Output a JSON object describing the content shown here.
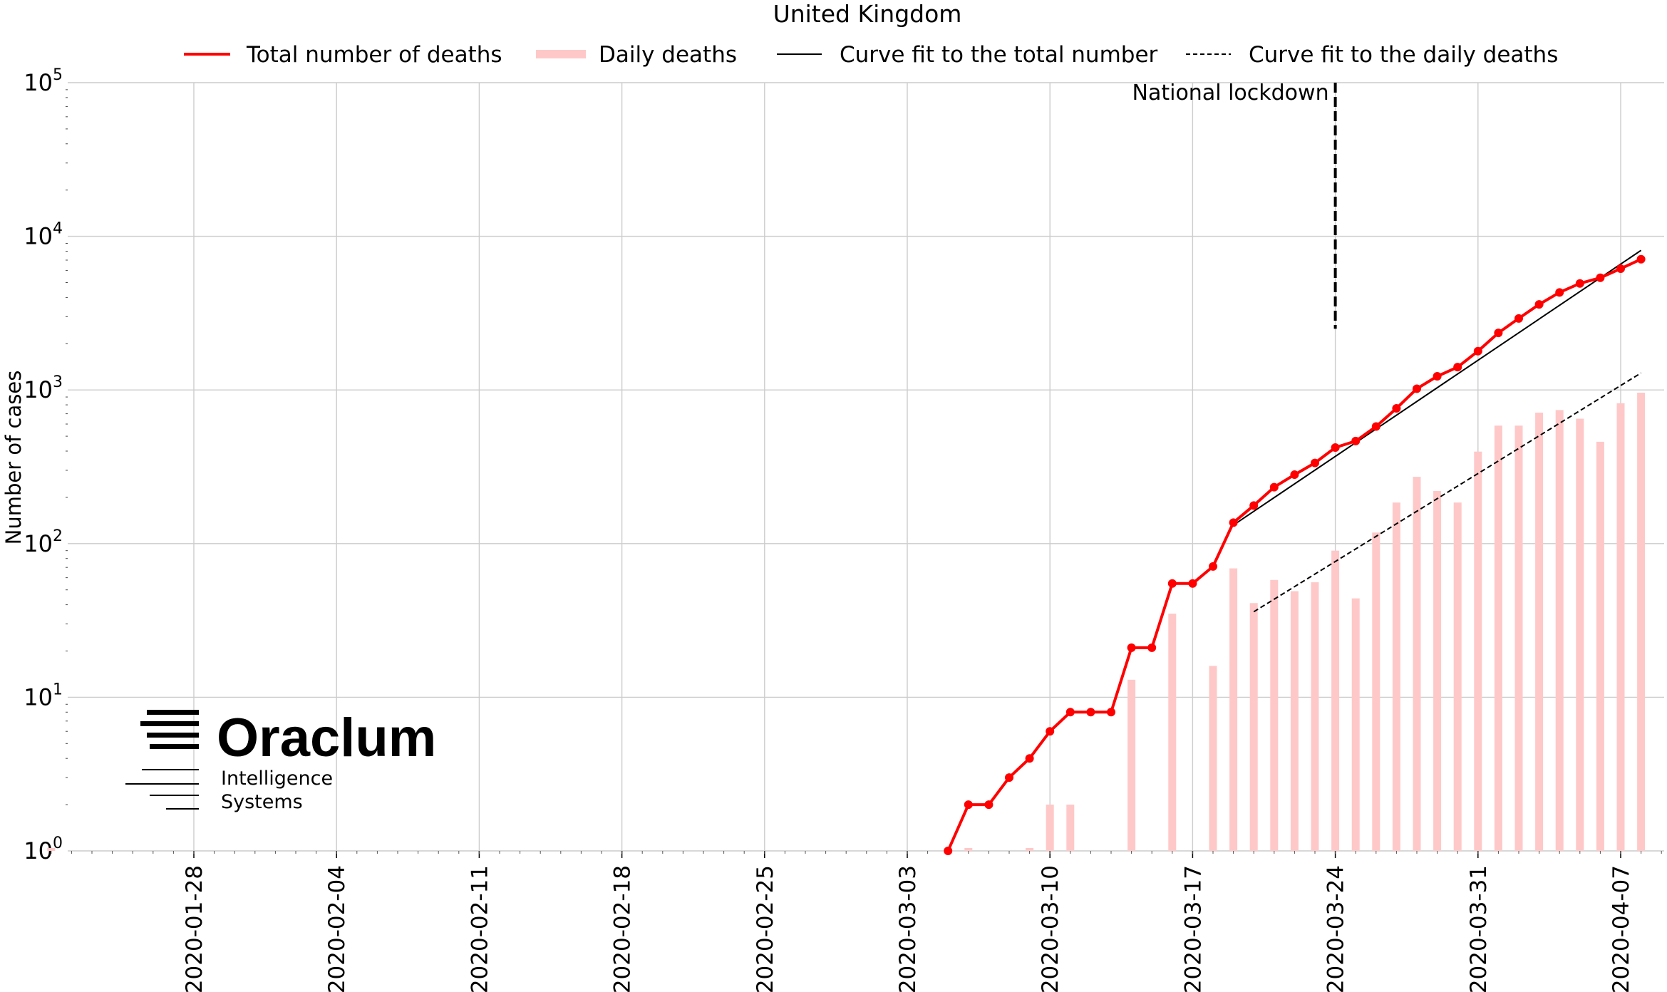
{
  "chart_data": {
    "type": "bar",
    "title": "United Kingdom",
    "xlabel": "",
    "ylabel": "Number of cases",
    "yscale": "log",
    "ylim": [
      1,
      100000
    ],
    "xlim": [
      "2020-01-21",
      "2020-04-09"
    ],
    "grid": true,
    "legend_position": "top",
    "colors": {
      "total": "#ff0000",
      "daily": "#ffc8c8",
      "fit": "#000000",
      "grid": "#cccccc"
    },
    "legend": [
      {
        "key": "total",
        "label": "Total number of deaths",
        "style": "red-line"
      },
      {
        "key": "daily",
        "label": "Daily deaths",
        "style": "pink-bar"
      },
      {
        "key": "fit_total",
        "label": "Curve fit to the total number",
        "style": "black-line"
      },
      {
        "key": "fit_daily",
        "label": "Curve fit to the daily deaths",
        "style": "black-dashed"
      }
    ],
    "x_tick_labels": [
      "2020-01-28",
      "2020-02-04",
      "2020-02-11",
      "2020-02-18",
      "2020-02-25",
      "2020-03-03",
      "2020-03-10",
      "2020-03-17",
      "2020-03-24",
      "2020-03-31",
      "2020-04-07"
    ],
    "y_ticks": [
      {
        "value": 1,
        "base": "10",
        "exp": "0"
      },
      {
        "value": 10,
        "base": "10",
        "exp": "1"
      },
      {
        "value": 100,
        "base": "10",
        "exp": "2"
      },
      {
        "value": 1000,
        "base": "10",
        "exp": "3"
      },
      {
        "value": 10000,
        "base": "10",
        "exp": "4"
      },
      {
        "value": 100000,
        "base": "10",
        "exp": "5"
      }
    ],
    "total_deaths": [
      {
        "x": "2020-03-05",
        "y": 1
      },
      {
        "x": "2020-03-06",
        "y": 2
      },
      {
        "x": "2020-03-07",
        "y": 2
      },
      {
        "x": "2020-03-08",
        "y": 3
      },
      {
        "x": "2020-03-09",
        "y": 4
      },
      {
        "x": "2020-03-10",
        "y": 6
      },
      {
        "x": "2020-03-11",
        "y": 8
      },
      {
        "x": "2020-03-12",
        "y": 8
      },
      {
        "x": "2020-03-13",
        "y": 8
      },
      {
        "x": "2020-03-14",
        "y": 21
      },
      {
        "x": "2020-03-15",
        "y": 21
      },
      {
        "x": "2020-03-16",
        "y": 55
      },
      {
        "x": "2020-03-17",
        "y": 55
      },
      {
        "x": "2020-03-18",
        "y": 71
      },
      {
        "x": "2020-03-19",
        "y": 137
      },
      {
        "x": "2020-03-20",
        "y": 177
      },
      {
        "x": "2020-03-21",
        "y": 233
      },
      {
        "x": "2020-03-22",
        "y": 281
      },
      {
        "x": "2020-03-23",
        "y": 335
      },
      {
        "x": "2020-03-24",
        "y": 422
      },
      {
        "x": "2020-03-25",
        "y": 465
      },
      {
        "x": "2020-03-26",
        "y": 578
      },
      {
        "x": "2020-03-27",
        "y": 759
      },
      {
        "x": "2020-03-28",
        "y": 1019
      },
      {
        "x": "2020-03-29",
        "y": 1228
      },
      {
        "x": "2020-03-30",
        "y": 1408
      },
      {
        "x": "2020-03-31",
        "y": 1789
      },
      {
        "x": "2020-04-01",
        "y": 2352
      },
      {
        "x": "2020-04-02",
        "y": 2921
      },
      {
        "x": "2020-04-03",
        "y": 3605
      },
      {
        "x": "2020-04-04",
        "y": 4313
      },
      {
        "x": "2020-04-05",
        "y": 4934
      },
      {
        "x": "2020-04-06",
        "y": 5373
      },
      {
        "x": "2020-04-07",
        "y": 6159
      },
      {
        "x": "2020-04-08",
        "y": 7097
      }
    ],
    "daily_deaths": [
      {
        "x": "2020-01-21",
        "y": 1
      },
      {
        "x": "2020-03-06",
        "y": 1
      },
      {
        "x": "2020-03-09",
        "y": 1
      },
      {
        "x": "2020-03-10",
        "y": 2
      },
      {
        "x": "2020-03-11",
        "y": 2
      },
      {
        "x": "2020-03-14",
        "y": 13
      },
      {
        "x": "2020-03-16",
        "y": 35
      },
      {
        "x": "2020-03-18",
        "y": 16
      },
      {
        "x": "2020-03-19",
        "y": 69
      },
      {
        "x": "2020-03-20",
        "y": 41
      },
      {
        "x": "2020-03-21",
        "y": 58
      },
      {
        "x": "2020-03-22",
        "y": 49
      },
      {
        "x": "2020-03-23",
        "y": 56
      },
      {
        "x": "2020-03-24",
        "y": 90
      },
      {
        "x": "2020-03-25",
        "y": 44
      },
      {
        "x": "2020-03-26",
        "y": 118
      },
      {
        "x": "2020-03-27",
        "y": 185
      },
      {
        "x": "2020-03-28",
        "y": 272
      },
      {
        "x": "2020-03-29",
        "y": 220
      },
      {
        "x": "2020-03-30",
        "y": 185
      },
      {
        "x": "2020-03-31",
        "y": 397
      },
      {
        "x": "2020-04-01",
        "y": 586
      },
      {
        "x": "2020-04-02",
        "y": 586
      },
      {
        "x": "2020-04-03",
        "y": 712
      },
      {
        "x": "2020-04-04",
        "y": 740
      },
      {
        "x": "2020-04-05",
        "y": 650
      },
      {
        "x": "2020-04-06",
        "y": 460
      },
      {
        "x": "2020-04-07",
        "y": 820
      },
      {
        "x": "2020-04-08",
        "y": 960
      }
    ],
    "fit_total": {
      "x_start": "2020-03-19",
      "x_end": "2020-04-08",
      "y_start": 132,
      "y_end": 8100
    },
    "fit_daily": {
      "x_start": "2020-03-20",
      "x_end": "2020-04-08",
      "y_start": 36,
      "y_end": 1290
    },
    "annotations": [
      {
        "label": "National lockdown",
        "x": "2020-03-24",
        "y_from": 2500,
        "y_to": 100000
      }
    ]
  },
  "logo": {
    "name": "Oraclum",
    "line1": "Intelligence",
    "line2": "Systems"
  }
}
